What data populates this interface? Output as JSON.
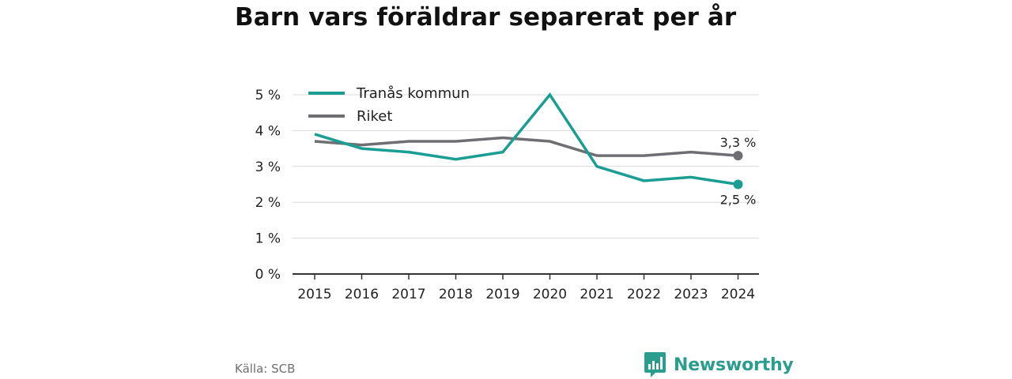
{
  "chart_data": {
    "type": "line",
    "title": "Barn vars föräldrar separerat per år",
    "categories": [
      "2015",
      "2016",
      "2017",
      "2018",
      "2019",
      "2020",
      "2021",
      "2022",
      "2023",
      "2024"
    ],
    "y_ticks": [
      "0 %",
      "1 %",
      "2 %",
      "3 %",
      "4 %",
      "5 %"
    ],
    "ylim": [
      0,
      5
    ],
    "grid": true,
    "legend_position": "top-left",
    "series": [
      {
        "name": "Tranås kommun",
        "color": "#1a9e94",
        "values": [
          3.9,
          3.5,
          3.4,
          3.2,
          3.4,
          5.0,
          3.0,
          2.6,
          2.7,
          2.5
        ],
        "end_label": "2,5 %"
      },
      {
        "name": "Riket",
        "color": "#6e6e73",
        "values": [
          3.7,
          3.6,
          3.7,
          3.7,
          3.8,
          3.7,
          3.3,
          3.3,
          3.4,
          3.3
        ],
        "end_label": "3,3 %"
      }
    ]
  },
  "footer": {
    "source": "Källa: SCB",
    "brand": "Newsworthy",
    "brand_color": "#2a9d8f",
    "brand_icon": "bar-chart-speech-bubble-icon"
  }
}
